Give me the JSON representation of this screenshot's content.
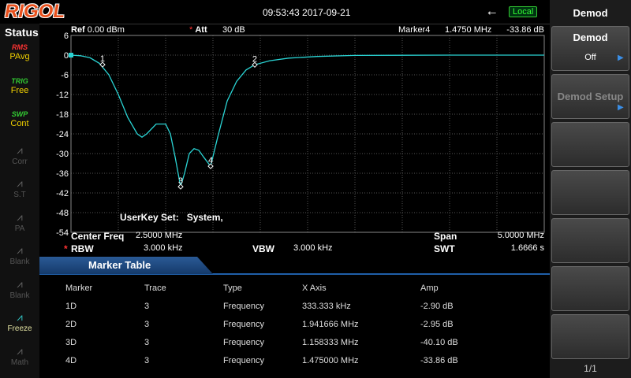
{
  "header": {
    "logo": "RIGOL",
    "datetime": "09:53:43 2017-09-21",
    "mode": "Local"
  },
  "status": {
    "title": "Status",
    "items": [
      {
        "tag": "RMS",
        "label": "PAvg",
        "color": "#f0d000"
      },
      {
        "tag": "TRIG",
        "label": "Free",
        "color": "#f0d000"
      },
      {
        "tag": "SWP",
        "label": "Cont",
        "color": "#f0d000"
      },
      {
        "label": "Corr",
        "color": "#555555"
      },
      {
        "label": "S.T",
        "color": "#555555"
      },
      {
        "label": "PA",
        "color": "#555555"
      },
      {
        "label": "Blank",
        "color": "#555555"
      },
      {
        "label": "Blank",
        "color": "#555555"
      },
      {
        "label": "Freeze",
        "color": "#e0e0a0"
      },
      {
        "label": "Math",
        "color": "#555555"
      }
    ]
  },
  "graph": {
    "ref_label": "Ref",
    "ref": "0.00 dBm",
    "att_flag": "*",
    "att_label": "Att",
    "att": "30 dB",
    "marker_label": "Marker4",
    "marker_x": "1.4750 MHz",
    "marker_amp": "-33.86 dB",
    "annotation": "UserKey Set:   System,",
    "ylim": [
      -54,
      6
    ],
    "yticks": [
      6,
      0,
      -6,
      -12,
      -18,
      -24,
      -30,
      -36,
      -42,
      -48,
      -54
    ],
    "xlim": [
      0,
      5
    ],
    "trace": {
      "color": "#2ad4d4",
      "x": [
        0,
        0.1,
        0.2,
        0.3,
        0.4,
        0.5,
        0.6,
        0.7,
        0.75,
        0.8,
        0.9,
        1.0,
        1.05,
        1.1,
        1.158,
        1.2,
        1.25,
        1.3,
        1.35,
        1.4,
        1.475,
        1.55,
        1.65,
        1.75,
        1.85,
        1.94,
        2.1,
        2.3,
        2.6,
        3.0,
        4.0,
        5.0
      ],
      "values": [
        0,
        -0.2,
        -0.8,
        -2.5,
        -6,
        -12,
        -19,
        -24,
        -25,
        -24,
        -21,
        -21,
        -24,
        -31,
        -40.1,
        -36,
        -30,
        -28.5,
        -29,
        -31,
        -33.86,
        -25,
        -14,
        -8,
        -4.5,
        -2.95,
        -1.7,
        -0.9,
        -0.4,
        -0.1,
        0,
        0
      ]
    },
    "markers": [
      {
        "label": "1",
        "x": 0.333333,
        "value": -2.9
      },
      {
        "label": "2",
        "x": 1.941666,
        "value": -2.95
      },
      {
        "label": "3",
        "x": 1.158333,
        "value": -40.1
      },
      {
        "label": "4",
        "x": 1.475,
        "value": -33.86
      }
    ]
  },
  "settings": [
    {
      "name": "Center Freq",
      "value": "2.5000 MHz"
    },
    {
      "name": "Span",
      "value": "5.0000 MHz"
    },
    {
      "flag": "*",
      "name": "RBW",
      "value": "3.000 kHz"
    },
    {
      "name": "VBW",
      "value": "3.000 kHz"
    },
    {
      "name": "SWT",
      "value": "1.6666 s"
    }
  ],
  "marker_table": {
    "title": "Marker Table",
    "columns": [
      "Marker",
      "Trace",
      "Type",
      "X Axis",
      "Amp"
    ],
    "rows": [
      [
        "1D",
        "3",
        "Frequency",
        "333.333 kHz",
        "-2.90 dB"
      ],
      [
        "2D",
        "3",
        "Frequency",
        "1.941666 MHz",
        "-2.95 dB"
      ],
      [
        "3D",
        "3",
        "Frequency",
        "1.158333 MHz",
        "-40.10 dB"
      ],
      [
        "4D",
        "3",
        "Frequency",
        "1.475000 MHz",
        "-33.86 dB"
      ]
    ]
  },
  "softkeys": {
    "title": "Demod",
    "buttons": [
      {
        "label": "Demod",
        "state": "Off"
      },
      {
        "label": "Demod Setup"
      }
    ],
    "page": "1/1"
  }
}
